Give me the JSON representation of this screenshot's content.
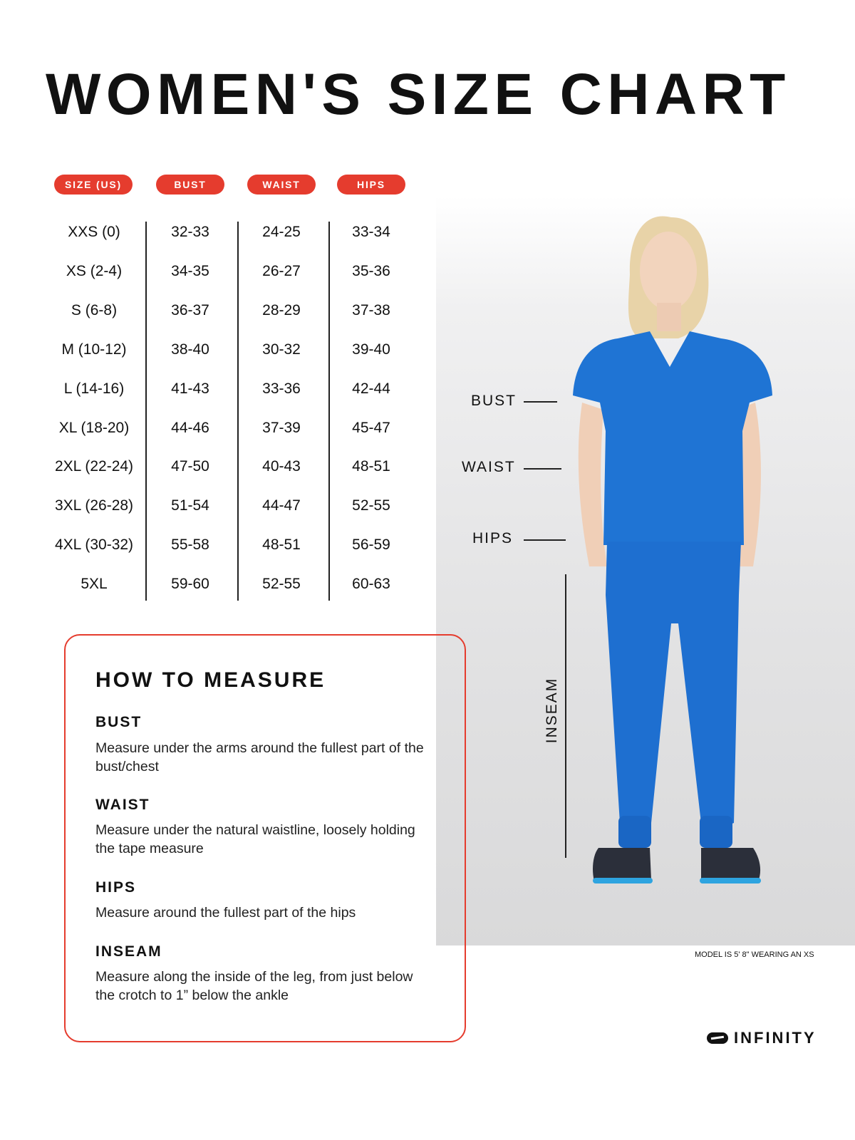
{
  "title": "WOMEN'S SIZE CHART",
  "accent_color": "#e53c2e",
  "table": {
    "headers": [
      "SIZE (US)",
      "BUST",
      "WAIST",
      "HIPS"
    ],
    "rows": [
      [
        "XXS (0)",
        "32-33",
        "24-25",
        "33-34"
      ],
      [
        "XS (2-4)",
        "34-35",
        "26-27",
        "35-36"
      ],
      [
        "S (6-8)",
        "36-37",
        "28-29",
        "37-38"
      ],
      [
        "M (10-12)",
        "38-40",
        "30-32",
        "39-40"
      ],
      [
        "L (14-16)",
        "41-43",
        "33-36",
        "42-44"
      ],
      [
        "XL (18-20)",
        "44-46",
        "37-39",
        "45-47"
      ],
      [
        "2XL (22-24)",
        "47-50",
        "40-43",
        "48-51"
      ],
      [
        "3XL (26-28)",
        "51-54",
        "44-47",
        "52-55"
      ],
      [
        "4XL (30-32)",
        "55-58",
        "48-51",
        "56-59"
      ],
      [
        "5XL",
        "59-60",
        "52-55",
        "60-63"
      ]
    ]
  },
  "model": {
    "labels": {
      "bust": "BUST",
      "waist": "WAIST",
      "hips": "HIPS",
      "inseam": "INSEAM"
    },
    "caption": "MODEL IS 5' 8\" WEARING AN XS"
  },
  "how_to_measure": {
    "heading": "HOW TO MEASURE",
    "items": [
      {
        "title": "BUST",
        "text": "Measure under the arms around the fullest part of the bust/chest"
      },
      {
        "title": "WAIST",
        "text": "Measure under the natural waistline, loosely holding the tape measure"
      },
      {
        "title": "HIPS",
        "text": "Measure around the fullest part of the hips"
      },
      {
        "title": "INSEAM",
        "text": "Measure along the inside of the leg, from just below the crotch to 1” below the ankle"
      }
    ]
  },
  "brand": "INFINITY"
}
